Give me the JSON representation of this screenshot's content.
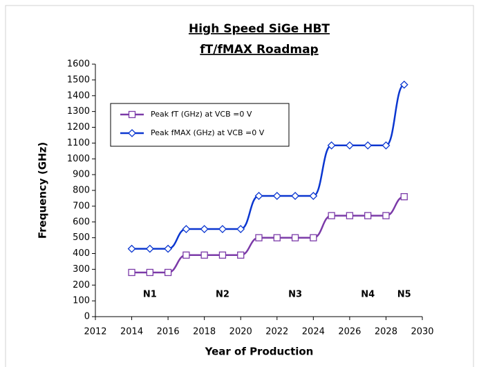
{
  "chart_data": {
    "type": "line",
    "title": "High Speed SiGe HBT",
    "subtitle": "fT/fMAX  Roadmap",
    "xlabel": "Year of Production",
    "ylabel": "Frequency (GHz)",
    "x": [
      2014,
      2015,
      2016,
      2017,
      2018,
      2019,
      2020,
      2021,
      2022,
      2023,
      2024,
      2025,
      2026,
      2027,
      2028,
      2029
    ],
    "series": [
      {
        "name": "Peak fT (GHz) at VCB =0 V",
        "color": "#7b3aa8",
        "marker": "square",
        "values": [
          280,
          280,
          280,
          390,
          390,
          390,
          390,
          500,
          500,
          500,
          500,
          640,
          640,
          640,
          640,
          760
        ]
      },
      {
        "name": "Peak fMAX (GHz) at VCB =0 V",
        "color": "#0a36d0",
        "marker": "diamond",
        "values": [
          430,
          430,
          430,
          555,
          555,
          555,
          555,
          765,
          765,
          765,
          765,
          1085,
          1085,
          1085,
          1085,
          1470
        ]
      }
    ],
    "xlim": [
      2012,
      2030
    ],
    "xticks": [
      2012,
      2014,
      2016,
      2018,
      2020,
      2022,
      2024,
      2026,
      2028,
      2030
    ],
    "ylim": [
      0,
      1600
    ],
    "yticks": [
      0,
      100,
      200,
      300,
      400,
      500,
      600,
      700,
      800,
      900,
      1000,
      1100,
      1200,
      1300,
      1400,
      1500,
      1600
    ],
    "grid": false,
    "legend": "upper-left",
    "annotations": [
      {
        "text": "N1",
        "x": 2015,
        "y": 140
      },
      {
        "text": "N2",
        "x": 2019,
        "y": 140
      },
      {
        "text": "N3",
        "x": 2023,
        "y": 140
      },
      {
        "text": "N4",
        "x": 2027,
        "y": 140
      },
      {
        "text": "N5",
        "x": 2029,
        "y": 140
      }
    ]
  }
}
